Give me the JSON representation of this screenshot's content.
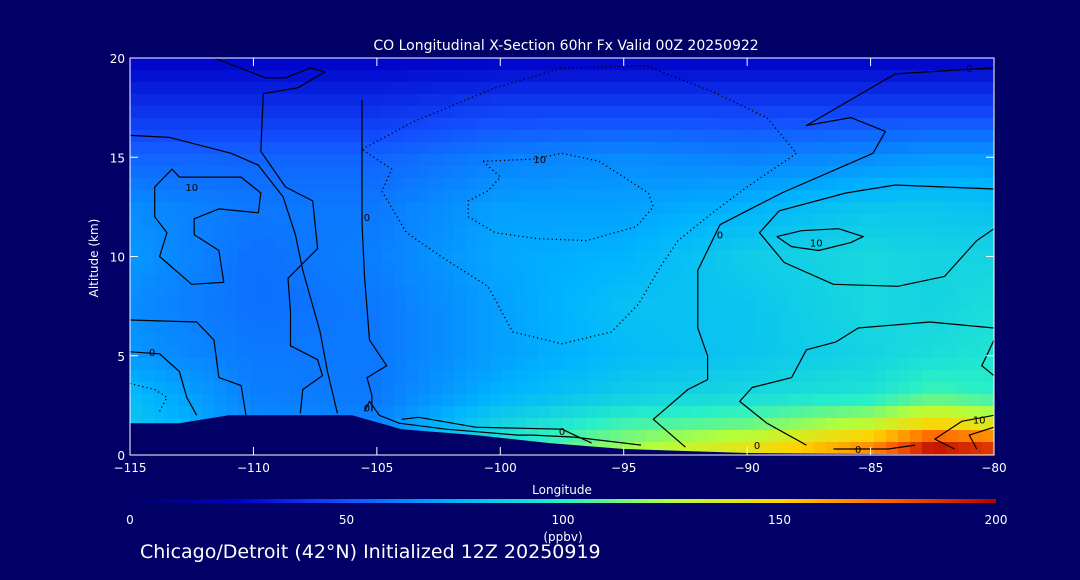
{
  "chart_data": {
    "type": "heatmap",
    "title": "CO Longitudinal X-Section 60hr  Fx Valid 00Z 20250922",
    "xlabel": "Longitude",
    "ylabel": "Altitude (km)",
    "xlim": [
      -115,
      -80
    ],
    "ylim": [
      0,
      20
    ],
    "x_ticks": [
      -115,
      -110,
      -105,
      -100,
      -95,
      -90,
      -85,
      -80
    ],
    "x_tick_labels": [
      "−115",
      "−110",
      "−105",
      "−100",
      "−95",
      "−90",
      "−85",
      "−80"
    ],
    "y_ticks": [
      0,
      5,
      10,
      15,
      20
    ],
    "y_tick_labels": [
      "0",
      "5",
      "10",
      "15",
      "20"
    ],
    "units": "(ppbv)",
    "colorbar": {
      "min": 0,
      "max": 200,
      "ticks": [
        0,
        50,
        100,
        150,
        200
      ],
      "tick_labels": [
        "0",
        "50",
        "100",
        "150",
        "200"
      ]
    },
    "field_x": [
      -115,
      -110,
      -105,
      -100,
      -95,
      -90,
      -85,
      -82.5,
      -80
    ],
    "field_y": [
      0.5,
      1.5,
      3,
      5,
      7.5,
      10,
      12.5,
      15,
      17.5,
      20
    ],
    "field_values": [
      [
        90,
        70,
        65,
        95,
        120,
        140,
        165,
        195,
        185
      ],
      [
        82,
        65,
        63,
        88,
        105,
        112,
        130,
        150,
        140
      ],
      [
        78,
        62,
        60,
        75,
        85,
        90,
        95,
        105,
        100
      ],
      [
        68,
        60,
        60,
        70,
        78,
        82,
        88,
        92,
        95
      ],
      [
        65,
        58,
        60,
        70,
        80,
        82,
        90,
        88,
        92
      ],
      [
        68,
        58,
        62,
        72,
        75,
        85,
        90,
        88,
        88
      ],
      [
        65,
        60,
        60,
        70,
        70,
        75,
        82,
        82,
        80
      ],
      [
        55,
        55,
        55,
        62,
        65,
        62,
        65,
        68,
        68
      ],
      [
        40,
        40,
        40,
        45,
        45,
        45,
        45,
        45,
        45
      ],
      [
        25,
        25,
        25,
        25,
        25,
        25,
        25,
        25,
        25
      ]
    ],
    "terrain": [
      {
        "lon": -115,
        "alt": 1.6
      },
      {
        "lon": -113,
        "alt": 1.6
      },
      {
        "lon": -111,
        "alt": 2.0
      },
      {
        "lon": -109,
        "alt": 2.0
      },
      {
        "lon": -106,
        "alt": 2.0
      },
      {
        "lon": -104,
        "alt": 1.3
      },
      {
        "lon": -101,
        "alt": 1.0
      },
      {
        "lon": -98,
        "alt": 0.6
      },
      {
        "lon": -95,
        "alt": 0.3
      },
      {
        "lon": -90,
        "alt": 0.1
      },
      {
        "lon": -80,
        "alt": 0.0
      }
    ],
    "contours": [
      {
        "style": "solid",
        "points": [
          [
            -111.6,
            20
          ],
          [
            -109.5,
            19.0
          ],
          [
            -108.7,
            19.0
          ],
          [
            -107.7,
            19.5
          ],
          [
            -107.1,
            19.3
          ],
          [
            -108.2,
            18.5
          ],
          [
            -109.6,
            18.2
          ],
          [
            -109.7,
            15.3
          ],
          [
            -108.7,
            13.5
          ],
          [
            -107.6,
            12.8
          ],
          [
            -107.4,
            10.4
          ],
          [
            -108.6,
            8.9
          ],
          [
            -108.5,
            7.2
          ],
          [
            -108.5,
            5.5
          ],
          [
            -107.4,
            4.8
          ],
          [
            -107.2,
            4.0
          ],
          [
            -108.0,
            3.3
          ],
          [
            -108.1,
            2.1
          ]
        ]
      },
      {
        "style": "solid",
        "points": [
          [
            -115,
            6.8
          ],
          [
            -112.3,
            6.7
          ],
          [
            -111.6,
            5.8
          ],
          [
            -111.4,
            3.9
          ],
          [
            -110.5,
            3.5
          ],
          [
            -110.3,
            2.0
          ]
        ]
      },
      {
        "style": "solid",
        "points": [
          [
            -115,
            5.2
          ],
          [
            -113.8,
            5.1
          ],
          [
            -113.0,
            4.2
          ],
          [
            -112.7,
            2.9
          ],
          [
            -112.3,
            2.0
          ]
        ]
      },
      {
        "style": "solid",
        "points": [
          [
            -115,
            16.1
          ],
          [
            -113.4,
            16.0
          ],
          [
            -110.9,
            15.2
          ],
          [
            -109.8,
            14.6
          ],
          [
            -108.8,
            13.0
          ],
          [
            -108.3,
            11.1
          ],
          [
            -108.0,
            9.3
          ],
          [
            -107.3,
            6.2
          ],
          [
            -107.0,
            4.2
          ],
          [
            -106.6,
            2.1
          ]
        ]
      },
      {
        "style": "solid",
        "points": [
          [
            -113.0,
            14.0
          ],
          [
            -113.3,
            14.4
          ],
          [
            -114.0,
            13.5
          ],
          [
            -114.0,
            12.0
          ],
          [
            -113.5,
            11.2
          ],
          [
            -113.8,
            10.0
          ],
          [
            -112.5,
            8.6
          ],
          [
            -111.2,
            8.7
          ],
          [
            -111.4,
            10.3
          ],
          [
            -112.4,
            11.1
          ],
          [
            -112.4,
            11.9
          ],
          [
            -111.4,
            12.4
          ],
          [
            -109.8,
            12.2
          ],
          [
            -109.7,
            13.2
          ],
          [
            -110.5,
            14.0
          ],
          [
            -112.0,
            14.0
          ],
          [
            -113.0,
            14.0
          ]
        ]
      },
      {
        "style": "solid",
        "points": [
          [
            -105.6,
            17.9
          ],
          [
            -105.6,
            11.7
          ],
          [
            -105.5,
            9.0
          ],
          [
            -105.3,
            5.8
          ],
          [
            -104.6,
            4.5
          ],
          [
            -105.4,
            3.9
          ],
          [
            -105.2,
            3.0
          ],
          [
            -105.2,
            2.2
          ]
        ]
      },
      {
        "style": "solid",
        "points": [
          [
            -105.5,
            2.2
          ],
          [
            -105.3,
            2.7
          ],
          [
            -104.9,
            2.0
          ],
          [
            -104.1,
            1.6
          ],
          [
            -102.2,
            1.3
          ],
          [
            -99.3,
            1.0
          ],
          [
            -98.7,
            1.0
          ],
          [
            -97.0,
            0.9
          ],
          [
            -94.3,
            0.5
          ]
        ]
      },
      {
        "style": "solid",
        "points": [
          [
            -104.0,
            1.8
          ],
          [
            -103.3,
            1.9
          ],
          [
            -101.0,
            1.4
          ],
          [
            -97.5,
            1.3
          ],
          [
            -96.3,
            0.6
          ]
        ]
      },
      {
        "style": "solid",
        "points": [
          [
            -92.5,
            0.4
          ],
          [
            -93.8,
            1.8
          ],
          [
            -92.4,
            3.3
          ],
          [
            -91.6,
            3.8
          ],
          [
            -91.6,
            5.0
          ],
          [
            -92.0,
            6.4
          ],
          [
            -92.0,
            9.3
          ],
          [
            -91.1,
            11.6
          ],
          [
            -88.6,
            13.2
          ],
          [
            -84.9,
            15.2
          ],
          [
            -84.4,
            16.3
          ],
          [
            -85.8,
            17.0
          ],
          [
            -87.6,
            16.6
          ],
          [
            -84.0,
            19.2
          ],
          [
            -81.4,
            19.4
          ],
          [
            -80,
            19.5
          ]
        ]
      },
      {
        "style": "solid",
        "points": [
          [
            -80,
            11.4
          ],
          [
            -80.7,
            10.8
          ],
          [
            -82.0,
            9.0
          ],
          [
            -83.9,
            8.5
          ],
          [
            -86.5,
            8.6
          ],
          [
            -88.5,
            9.7
          ],
          [
            -89.5,
            11.2
          ],
          [
            -88.7,
            12.3
          ],
          [
            -86.0,
            13.2
          ],
          [
            -84.0,
            13.6
          ],
          [
            -80,
            13.4
          ]
        ]
      },
      {
        "style": "solid",
        "points": [
          [
            -88.8,
            11.0
          ],
          [
            -87.8,
            11.3
          ],
          [
            -86.3,
            11.4
          ],
          [
            -85.3,
            11.0
          ],
          [
            -85.8,
            10.7
          ],
          [
            -87.1,
            10.3
          ],
          [
            -88.2,
            10.5
          ],
          [
            -88.8,
            11.0
          ]
        ]
      },
      {
        "style": "solid",
        "points": [
          [
            -80,
            6.4
          ],
          [
            -82.6,
            6.7
          ],
          [
            -85.5,
            6.4
          ],
          [
            -86.4,
            5.7
          ],
          [
            -87.6,
            5.3
          ],
          [
            -88.2,
            3.9
          ],
          [
            -89.8,
            3.4
          ],
          [
            -90.3,
            2.7
          ],
          [
            -89.2,
            1.6
          ],
          [
            -87.6,
            0.5
          ]
        ]
      },
      {
        "style": "solid",
        "points": [
          [
            -80,
            5.8
          ],
          [
            -80.3,
            5.0
          ],
          [
            -80.5,
            4.5
          ],
          [
            -80,
            4.0
          ]
        ]
      },
      {
        "style": "solid",
        "points": [
          [
            -80,
            2.0
          ],
          [
            -81.3,
            1.7
          ],
          [
            -82.4,
            0.8
          ],
          [
            -81.6,
            0.3
          ]
        ]
      },
      {
        "style": "solid",
        "points": [
          [
            -80,
            1.4
          ],
          [
            -81.0,
            1.0
          ],
          [
            -80.7,
            0.3
          ]
        ]
      },
      {
        "style": "solid",
        "points": [
          [
            -86.5,
            0.3
          ],
          [
            -84.3,
            0.3
          ],
          [
            -83.2,
            0.5
          ]
        ]
      },
      {
        "style": "dotted",
        "points": [
          [
            -115,
            3.6
          ],
          [
            -114.0,
            3.3
          ],
          [
            -113.5,
            2.9
          ],
          [
            -113.8,
            2.2
          ]
        ]
      },
      {
        "style": "dotted",
        "points": [
          [
            -105.6,
            15.4
          ],
          [
            -103.5,
            16.8
          ],
          [
            -100.2,
            18.5
          ],
          [
            -97.5,
            19.5
          ],
          [
            -94.1,
            19.6
          ],
          [
            -91.4,
            18.3
          ],
          [
            -89.2,
            17.0
          ],
          [
            -88.0,
            15.2
          ],
          [
            -90.0,
            13.5
          ],
          [
            -91.3,
            12.3
          ],
          [
            -92.8,
            10.8
          ],
          [
            -93.5,
            9.5
          ],
          [
            -94.4,
            7.6
          ],
          [
            -95.5,
            6.2
          ],
          [
            -97.5,
            5.6
          ],
          [
            -99.5,
            6.2
          ],
          [
            -100.5,
            8.5
          ],
          [
            -102.4,
            10.0
          ],
          [
            -103.8,
            11.2
          ],
          [
            -104.8,
            13.3
          ],
          [
            -104.4,
            14.4
          ],
          [
            -105.6,
            15.4
          ]
        ]
      },
      {
        "style": "dotted",
        "points": [
          [
            -100.7,
            14.8
          ],
          [
            -98.7,
            14.9
          ],
          [
            -97.5,
            15.2
          ],
          [
            -96.0,
            14.8
          ],
          [
            -95.0,
            14.0
          ],
          [
            -94.0,
            13.2
          ],
          [
            -93.8,
            12.5
          ],
          [
            -94.5,
            11.5
          ],
          [
            -96.5,
            10.8
          ],
          [
            -98.5,
            10.9
          ],
          [
            -100.2,
            11.2
          ],
          [
            -101.3,
            12.0
          ],
          [
            -101.3,
            12.8
          ],
          [
            -100.5,
            13.3
          ],
          [
            -100.0,
            14.0
          ],
          [
            -100.7,
            14.8
          ]
        ]
      }
    ],
    "contour_labels": [
      {
        "text": "10",
        "lon": -112.5,
        "alt": 13.5
      },
      {
        "text": "0",
        "lon": -105.4,
        "alt": 12.0
      },
      {
        "text": "0",
        "lon": -114.1,
        "alt": 5.2
      },
      {
        "text": "0",
        "lon": -105.4,
        "alt": 2.4
      },
      {
        "text": "10",
        "lon": -98.4,
        "alt": 14.9
      },
      {
        "text": "0",
        "lon": -91.1,
        "alt": 11.1
      },
      {
        "text": "10",
        "lon": -87.2,
        "alt": 10.7
      },
      {
        "text": "0",
        "lon": -81.0,
        "alt": 19.5
      },
      {
        "text": "10",
        "lon": -80.6,
        "alt": 1.8
      },
      {
        "text": "0",
        "lon": -97.5,
        "alt": 1.2
      },
      {
        "text": "0",
        "lon": -89.6,
        "alt": 0.5
      },
      {
        "text": "0",
        "lon": -85.5,
        "alt": 0.3
      }
    ]
  },
  "footer": "Chicago/Detroit (42°N) Initialized 12Z 20250919"
}
